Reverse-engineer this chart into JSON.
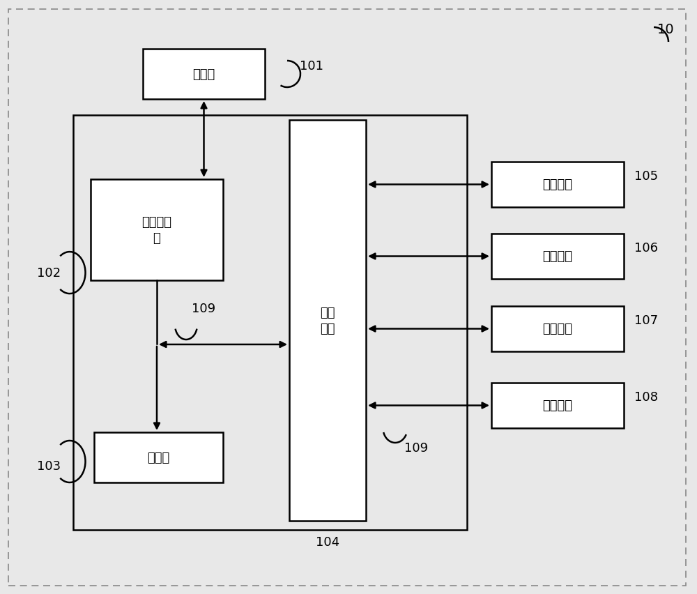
{
  "bg_color": "#e8e8e8",
  "box_color": "#ffffff",
  "border_color": "#000000",
  "text_color": "#000000",
  "label_10": "10",
  "label_101": "101",
  "label_102": "102",
  "label_103": "103",
  "label_104": "104",
  "label_105": "105",
  "label_106": "106",
  "label_107": "107",
  "label_108": "108",
  "label_109a": "109",
  "label_109b": "109",
  "box_cunchu": "存储器",
  "box_cunchu_ctrl": "存储控制\n器",
  "box_processor": "处理器",
  "box_interface": "外设\n接口",
  "box_rf": "射频模块",
  "box_key": "按键模块",
  "box_audio": "音频模块",
  "box_touch": "触控屏幕",
  "font_name": "SimHei"
}
